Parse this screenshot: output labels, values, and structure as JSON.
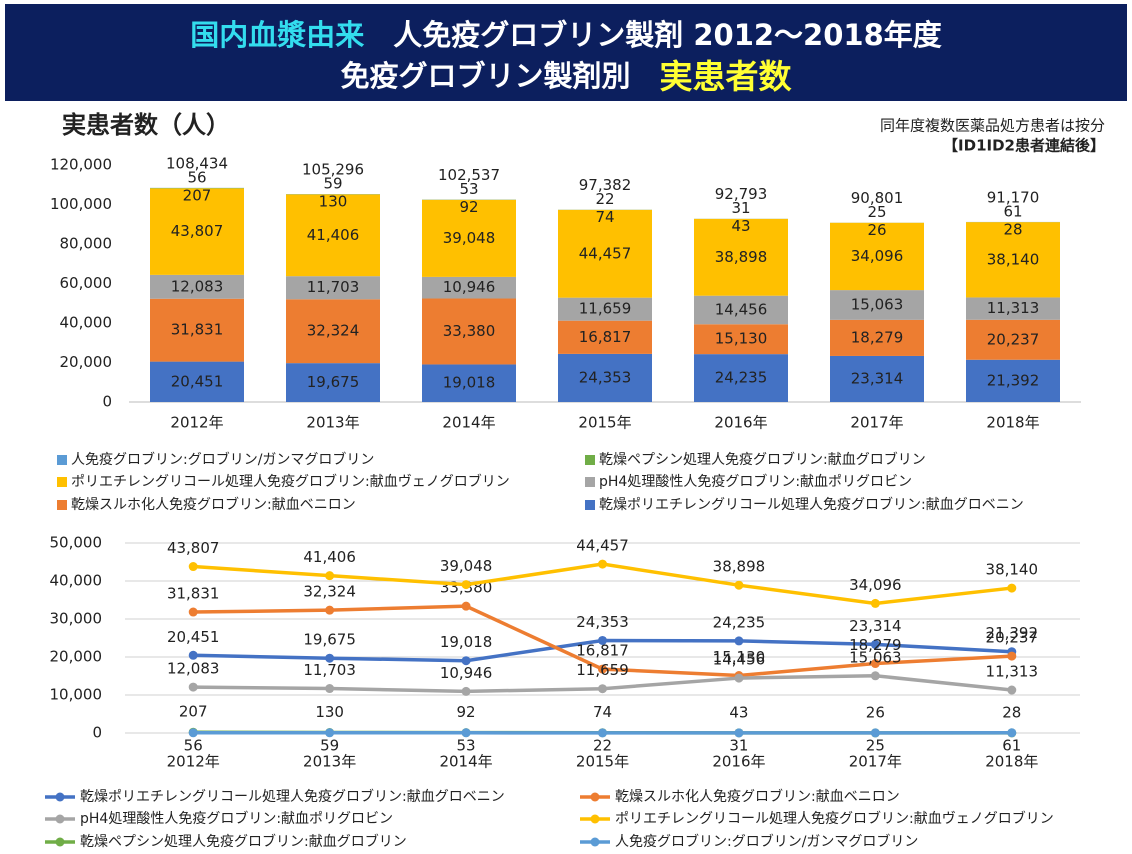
{
  "header": {
    "line1": [
      "国内血漿由来",
      "　人免疫グロブリン製剤 2012～2018年度"
    ],
    "line2": [
      "免疫グロブリン製剤別　",
      "実患者数"
    ]
  },
  "chart_data": [
    {
      "type": "stacked_bar",
      "title": "実患者数（人）",
      "annotations": [
        "同年度複数医薬品処方患者は按分",
        "【ID1ID2患者連結後】"
      ],
      "categories": [
        "2012年",
        "2013年",
        "2014年",
        "2015年",
        "2016年",
        "2017年",
        "2018年"
      ],
      "ylim": [
        0,
        120000
      ],
      "yticks": [
        0,
        {
          "value": 20000,
          "label": "20,000"
        },
        {
          "value": 40000,
          "label": "40,000"
        },
        {
          "value": 60000,
          "label": "60,000"
        },
        {
          "value": 80000,
          "label": "80,000"
        },
        {
          "value": 100000,
          "label": "100,000"
        },
        {
          "value": 120000,
          "label": "120,000"
        }
      ],
      "grid": false,
      "series": [
        {
          "name": "乾燥ポリエチレングリコール処理人免疫グロブリン:献血グロベニン",
          "color": "#4472c4",
          "values": [
            20451,
            19675,
            19018,
            24353,
            24235,
            23314,
            21392
          ],
          "value_labels": [
            "20,451",
            "19,675",
            "19,018",
            "24,353",
            "24,235",
            "23,314",
            "21,392"
          ]
        },
        {
          "name": "乾燥スルホ化人免疫グロブリン:献血ベニロン",
          "color": "#ed7d31",
          "values": [
            31831,
            32324,
            33380,
            16817,
            15130,
            18279,
            20237
          ],
          "value_labels": [
            "31,831",
            "32,324",
            "33,380",
            "16,817",
            "15,130",
            "18,279",
            "20,237"
          ]
        },
        {
          "name": "pH4処理酸性人免疫グロブリン:献血ポリグロビン",
          "color": "#a5a5a5",
          "values": [
            12083,
            11703,
            10946,
            11659,
            14456,
            15063,
            11313
          ],
          "value_labels": [
            "12,083",
            "11,703",
            "10,946",
            "11,659",
            "14,456",
            "15,063",
            "11,313"
          ]
        },
        {
          "name": "ポリエチレングリコール処理人免疫グロブリン:献血ヴェノグロブリン",
          "color": "#ffc000",
          "values": [
            43807,
            41406,
            39048,
            44457,
            38898,
            34096,
            38140
          ],
          "value_labels": [
            "43,807",
            "41,406",
            "39,048",
            "44,457",
            "38,898",
            "34,096",
            "38,140"
          ]
        },
        {
          "name": "乾燥ペプシン処理人免疫グロブリン:献血グロブリン",
          "color": "#70ad47",
          "values": [
            207,
            130,
            92,
            74,
            43,
            26,
            28
          ]
        },
        {
          "name": "人免疫グロブリン:グロブリン/ガンマグロブリン",
          "color": "#5b9bd5",
          "values": [
            56,
            59,
            53,
            22,
            31,
            25,
            61
          ]
        }
      ],
      "totals": [
        108434,
        105296,
        102537,
        97382,
        92793,
        90801,
        91170
      ],
      "total_labels": [
        "108,434",
        "105,296",
        "102,537",
        "97,382",
        "92,793",
        "90,801",
        "91,170"
      ]
    },
    {
      "type": "line",
      "categories": [
        "2012年",
        "2013年",
        "2014年",
        "2015年",
        "2016年",
        "2017年",
        "2018年"
      ],
      "ylim": [
        0,
        50000
      ],
      "yticks": [
        0,
        {
          "value": 10000,
          "label": "10,000"
        },
        {
          "value": 20000,
          "label": "20,000"
        },
        {
          "value": 30000,
          "label": "30,000"
        },
        {
          "value": 40000,
          "label": "40,000"
        },
        {
          "value": 50000,
          "label": "50,000"
        }
      ],
      "grid": true,
      "series": [
        {
          "name": "乾燥ポリエチレングリコール処理人免疫グロブリン:献血グロベニン",
          "color": "#4472c4",
          "values": [
            20451,
            19675,
            19018,
            24353,
            24235,
            23314,
            21392
          ],
          "value_labels": [
            "20,451",
            "19,675",
            "19,018",
            "24,353",
            "24,235",
            "23,314",
            "21,392"
          ]
        },
        {
          "name": "乾燥スルホ化人免疫グロブリン:献血ベニロン",
          "color": "#ed7d31",
          "values": [
            31831,
            32324,
            33380,
            16817,
            15130,
            18279,
            20237
          ],
          "value_labels": [
            "31,831",
            "32,324",
            "33,380",
            "16,817",
            "15,130",
            "18,279",
            "20,237"
          ]
        },
        {
          "name": "pH4処理酸性人免疫グロブリン:献血ポリグロビン",
          "color": "#a5a5a5",
          "values": [
            12083,
            11703,
            10946,
            11659,
            14456,
            15063,
            11313
          ],
          "value_labels": [
            "12,083",
            "11,703",
            "10,946",
            "11,659",
            "14,456",
            "15,063",
            "11,313"
          ]
        },
        {
          "name": "ポリエチレングリコール処理人免疫グロブリン:献血ヴェノグロブリン",
          "color": "#ffc000",
          "values": [
            43807,
            41406,
            39048,
            44457,
            38898,
            34096,
            38140
          ],
          "value_labels": [
            "43,807",
            "41,406",
            "39,048",
            "44,457",
            "38,898",
            "34,096",
            "38,140"
          ]
        },
        {
          "name": "乾燥ペプシン処理人免疫グロブリン:献血グロブリン",
          "color": "#70ad47",
          "values": [
            207,
            130,
            92,
            74,
            43,
            26,
            28
          ]
        },
        {
          "name": "人免疫グロブリン:グロブリン/ガンマグロブリン",
          "color": "#5b9bd5",
          "values": [
            56,
            59,
            53,
            22,
            31,
            25,
            61
          ]
        }
      ]
    }
  ]
}
